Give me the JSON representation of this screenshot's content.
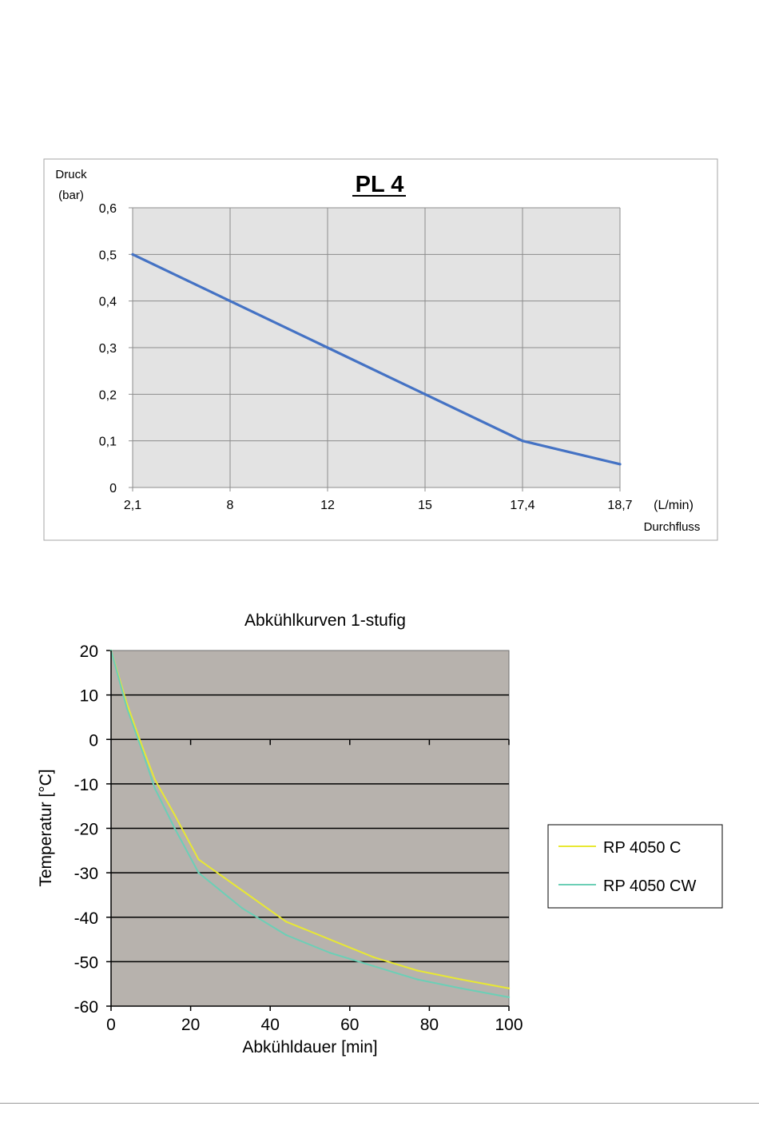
{
  "chart_data": [
    {
      "type": "line",
      "title": "PL 4",
      "ylabel": "Druck (bar)",
      "ylabel_lines": [
        "Druck",
        "(bar)"
      ],
      "xlabel": "Durchfluss",
      "xunit": "(L/min)",
      "categories": [
        "2,1",
        "8",
        "12",
        "15",
        "17,4",
        "18,7"
      ],
      "series": [
        {
          "values": [
            0.5,
            0.4,
            0.3,
            0.2,
            0.1,
            0.05
          ]
        }
      ],
      "ylim": [
        0,
        0.6
      ],
      "yticks": [
        "0",
        "0,1",
        "0,2",
        "0,3",
        "0,4",
        "0,5",
        "0,6"
      ],
      "grid": true,
      "colors": {
        "line": "#4472c4",
        "plot_bg": "#e3e3e3",
        "grid": "#8c8c8c"
      }
    },
    {
      "type": "line",
      "title": "Abkühlkurven 1-stufig",
      "xlabel": "Abkühldauer [min]",
      "ylabel": "Temperatur [°C]",
      "xlim": [
        0,
        100
      ],
      "ylim": [
        -60,
        20
      ],
      "xticks": [
        0,
        20,
        40,
        60,
        80,
        100
      ],
      "yticks": [
        20,
        10,
        0,
        -10,
        -20,
        -30,
        -40,
        -50,
        -60
      ],
      "grid": true,
      "legend": "right",
      "series": [
        {
          "name": "RP 4050 C",
          "color": "#e8e833",
          "x": [
            0,
            4,
            8,
            11,
            16,
            22,
            33,
            44,
            55,
            66,
            77,
            88,
            100
          ],
          "y": [
            20,
            8,
            -2,
            -9,
            -17,
            -27,
            -34,
            -41,
            -45,
            -49,
            -52,
            -54,
            -56
          ]
        },
        {
          "name": "RP 4050 CW",
          "color": "#6ccfb6",
          "x": [
            0,
            4,
            8,
            11,
            16,
            22,
            33,
            44,
            55,
            66,
            77,
            88,
            100
          ],
          "y": [
            20,
            7,
            -3,
            -11,
            -20,
            -30,
            -38,
            -44,
            -48,
            -51,
            -54,
            -56,
            -58
          ]
        }
      ],
      "colors": {
        "plot_bg": "#b7b2ad",
        "grid": "#000000"
      }
    }
  ]
}
